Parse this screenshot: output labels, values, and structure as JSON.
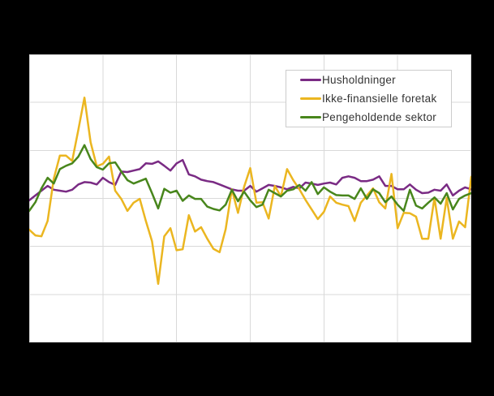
{
  "colors": {
    "background": "#000000",
    "plot_background": "#ffffff",
    "gridline": "#d9d9d9",
    "legend_border": "#cccccc",
    "legend_background": "#ffffff",
    "legend_text": "#333333"
  },
  "legend": {
    "position": "top-right-inside"
  },
  "chart_data": {
    "type": "line",
    "title": "",
    "xlabel": "",
    "ylabel": "",
    "x_axis": {
      "tick_labels_visible": false,
      "gridline_divisions": 6,
      "x_unit": "month index",
      "x_range": [
        0,
        72
      ]
    },
    "y_axis": {
      "tick_labels_visible": false,
      "gridline_divisions": 6,
      "units": "gridline units (0 = bottom gridline, 6 = top gridline); numeric labels not visible in image",
      "ylim": [
        0,
        6
      ]
    },
    "grid": "on",
    "legend_position": "top-right",
    "series": [
      {
        "name": "Husholdninger",
        "color": "#7a2b84",
        "values": [
          2.96,
          3.06,
          3.16,
          3.26,
          3.18,
          3.16,
          3.14,
          3.18,
          3.29,
          3.34,
          3.33,
          3.29,
          3.43,
          3.34,
          3.28,
          3.56,
          3.55,
          3.58,
          3.61,
          3.73,
          3.72,
          3.77,
          3.68,
          3.58,
          3.73,
          3.8,
          3.5,
          3.46,
          3.39,
          3.36,
          3.34,
          3.29,
          3.24,
          3.19,
          3.16,
          3.16,
          3.26,
          3.14,
          3.21,
          3.28,
          3.26,
          3.23,
          3.19,
          3.24,
          3.21,
          3.33,
          3.31,
          3.28,
          3.31,
          3.33,
          3.29,
          3.43,
          3.46,
          3.43,
          3.36,
          3.36,
          3.39,
          3.46,
          3.26,
          3.26,
          3.19,
          3.19,
          3.29,
          3.18,
          3.11,
          3.12,
          3.18,
          3.16,
          3.29,
          3.06,
          3.16,
          3.23,
          3.19
        ]
      },
      {
        "name": "Ikke-finansielle foretak",
        "color": "#ebb620",
        "values": [
          2.35,
          2.23,
          2.21,
          2.53,
          3.41,
          3.89,
          3.89,
          3.78,
          4.43,
          5.1,
          4.17,
          3.67,
          3.72,
          3.87,
          3.16,
          2.99,
          2.74,
          2.91,
          2.99,
          2.53,
          2.11,
          1.22,
          2.21,
          2.38,
          1.92,
          1.94,
          2.65,
          2.31,
          2.4,
          2.16,
          1.95,
          1.88,
          2.36,
          3.19,
          2.7,
          3.24,
          3.63,
          2.91,
          2.92,
          2.58,
          3.26,
          3.04,
          3.61,
          3.38,
          3.19,
          2.97,
          2.77,
          2.57,
          2.72,
          3.04,
          2.91,
          2.87,
          2.84,
          2.53,
          2.91,
          3.06,
          3.21,
          2.92,
          2.79,
          3.51,
          2.38,
          2.7,
          2.69,
          2.62,
          2.16,
          2.16,
          3.01,
          2.16,
          3.01,
          2.16,
          2.52,
          2.4,
          3.45
        ]
      },
      {
        "name": "Pengeholdende sektor",
        "color": "#48861c",
        "values": [
          2.74,
          2.92,
          3.21,
          3.43,
          3.31,
          3.61,
          3.68,
          3.73,
          3.87,
          4.11,
          3.82,
          3.65,
          3.6,
          3.73,
          3.75,
          3.56,
          3.38,
          3.31,
          3.36,
          3.41,
          3.11,
          2.79,
          3.2,
          3.12,
          3.16,
          2.95,
          3.06,
          2.99,
          2.99,
          2.83,
          2.78,
          2.75,
          2.87,
          3.18,
          2.94,
          3.14,
          2.96,
          2.82,
          2.87,
          3.18,
          3.11,
          3.04,
          3.16,
          3.19,
          3.28,
          3.16,
          3.34,
          3.09,
          3.23,
          3.14,
          3.07,
          3.06,
          3.06,
          2.99,
          3.21,
          2.99,
          3.19,
          3.11,
          2.92,
          3.04,
          2.87,
          2.74,
          3.18,
          2.85,
          2.79,
          2.91,
          3.02,
          2.89,
          3.11,
          2.77,
          2.99,
          3.06,
          3.11
        ]
      }
    ]
  }
}
